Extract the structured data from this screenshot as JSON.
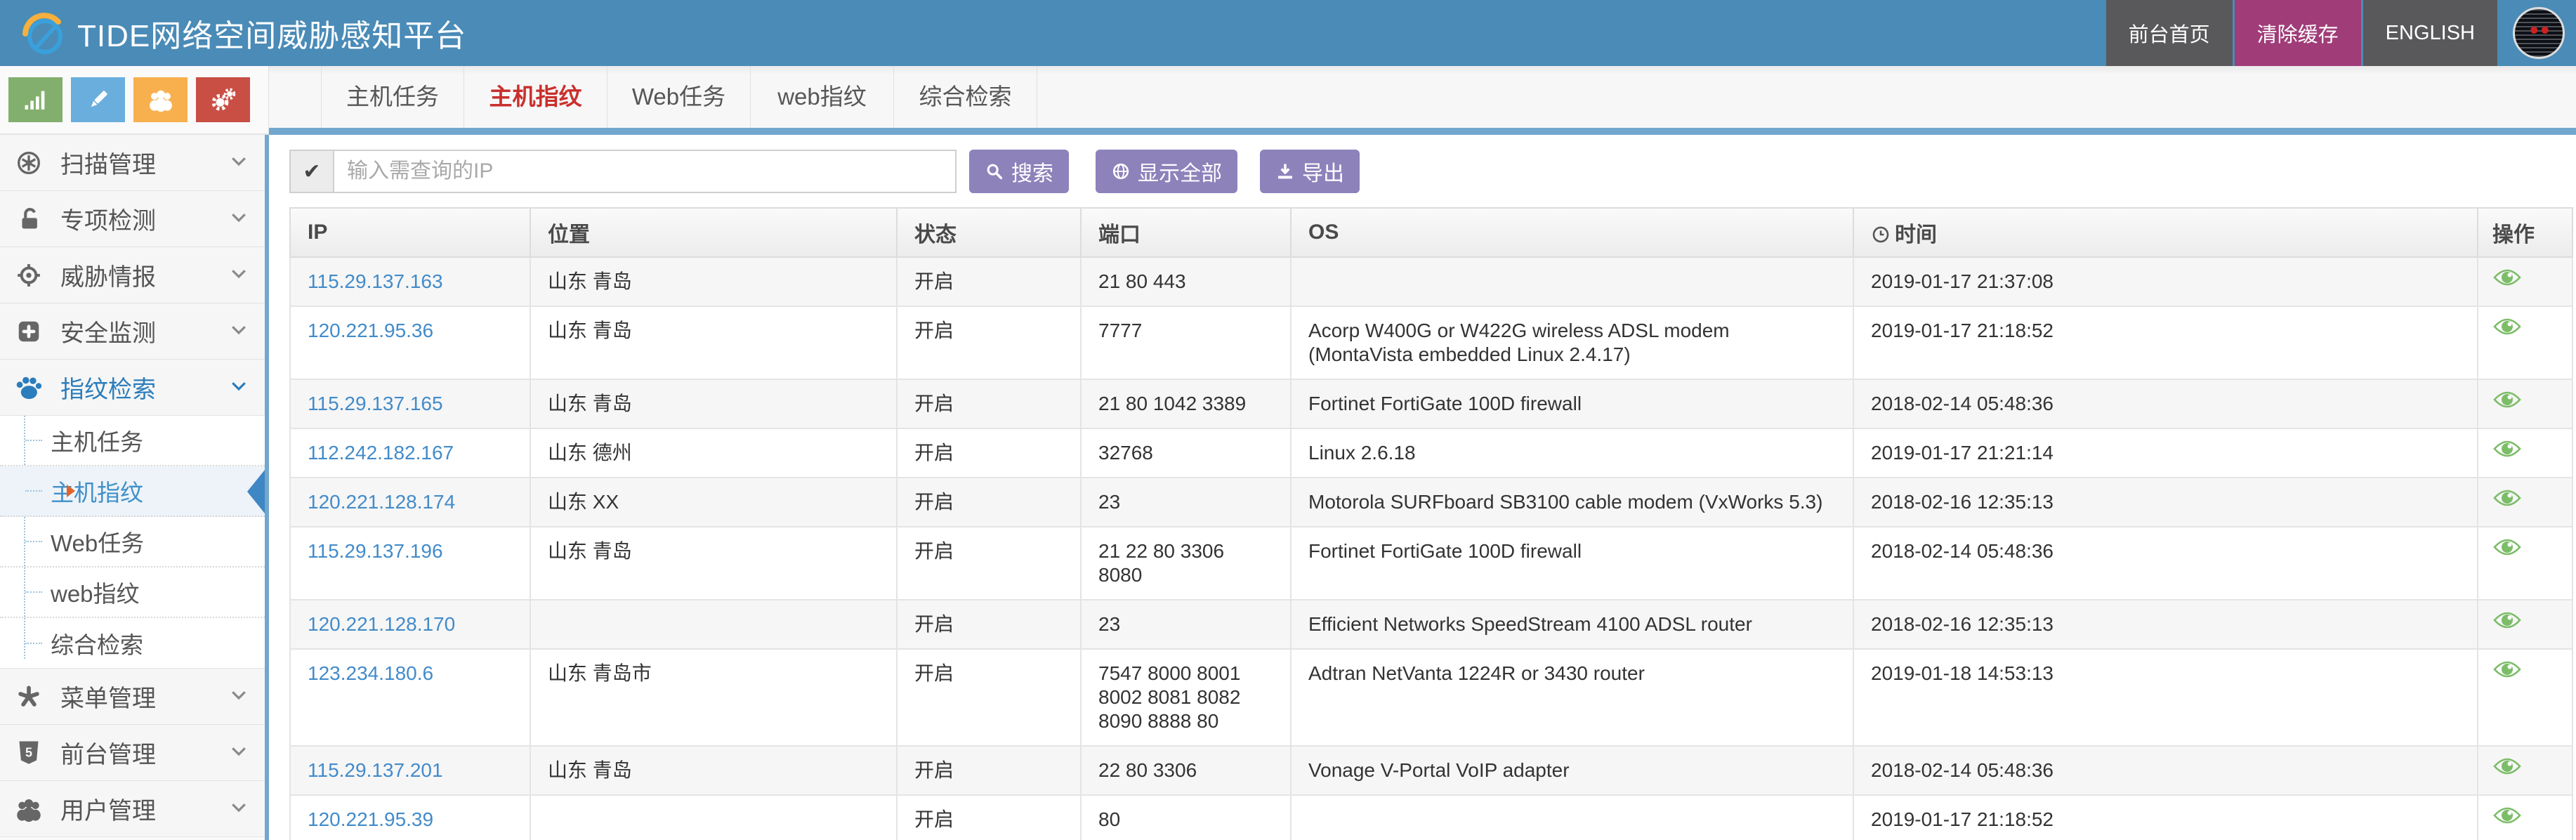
{
  "header": {
    "title": "TIDE网络空间威胁感知平台",
    "nav": [
      {
        "label": "前台首页"
      },
      {
        "label": "清除缓存"
      },
      {
        "label": "ENGLISH"
      }
    ]
  },
  "quick_buttons": [
    {
      "icon": "bar-chart-icon",
      "color": "#82af6e"
    },
    {
      "icon": "pencil-icon",
      "color": "#6aaedd"
    },
    {
      "icon": "users-icon",
      "color": "#f8b04f"
    },
    {
      "icon": "gears-icon",
      "color": "#c94f44"
    }
  ],
  "tabs": [
    {
      "label": "主机任务",
      "active": false
    },
    {
      "label": "主机指纹",
      "active": true
    },
    {
      "label": "Web任务",
      "active": false
    },
    {
      "label": "web指纹",
      "active": false
    },
    {
      "label": "综合检索",
      "active": false
    }
  ],
  "sidebar": {
    "items": [
      {
        "label": "扫描管理",
        "icon": "scan-icon"
      },
      {
        "label": "专项检测",
        "icon": "unlock-icon"
      },
      {
        "label": "威胁情报",
        "icon": "crosshair-icon"
      },
      {
        "label": "安全监测",
        "icon": "plus-square-icon"
      },
      {
        "label": "指纹检索",
        "icon": "paw-icon",
        "active": true,
        "children": [
          {
            "label": "主机任务",
            "active": false
          },
          {
            "label": "主机指纹",
            "active": true
          },
          {
            "label": "Web任务",
            "active": false
          },
          {
            "label": "web指纹",
            "active": false
          },
          {
            "label": "综合检索",
            "active": false
          }
        ]
      },
      {
        "label": "菜单管理",
        "icon": "burst-icon"
      },
      {
        "label": "前台管理",
        "icon": "html5-shield-icon"
      },
      {
        "label": "用户管理",
        "icon": "user-group-icon"
      }
    ]
  },
  "search": {
    "addon_check": "✔",
    "value": "",
    "placeholder": "输入需查询的IP",
    "buttons": {
      "search": "搜索",
      "show_all": "显示全部",
      "export": "导出"
    }
  },
  "table": {
    "columns": [
      "IP",
      "位置",
      "状态",
      "端口",
      "OS",
      "时间",
      "操作"
    ],
    "rows": [
      {
        "ip": "115.29.137.163",
        "location": "山东 青岛",
        "status": "开启",
        "ports": "21 80 443",
        "os": "",
        "time": "2019-01-17 21:37:08"
      },
      {
        "ip": "120.221.95.36",
        "location": "山东 青岛",
        "status": "开启",
        "ports": "7777",
        "os": "Acorp W400G or W422G wireless ADSL modem (MontaVista embedded Linux 2.4.17)",
        "time": "2019-01-17 21:18:52"
      },
      {
        "ip": "115.29.137.165",
        "location": "山东 青岛",
        "status": "开启",
        "ports": "21 80 1042 3389",
        "os": "Fortinet FortiGate 100D firewall",
        "time": "2018-02-14 05:48:36"
      },
      {
        "ip": "112.242.182.167",
        "location": "山东 德州",
        "status": "开启",
        "ports": "32768",
        "os": "Linux 2.6.18",
        "time": "2019-01-17 21:21:14"
      },
      {
        "ip": "120.221.128.174",
        "location": "山东 XX",
        "status": "开启",
        "ports": "23",
        "os": "Motorola SURFboard SB3100 cable modem (VxWorks 5.3)",
        "time": "2018-02-16 12:35:13"
      },
      {
        "ip": "115.29.137.196",
        "location": "山东 青岛",
        "status": "开启",
        "ports": "21 22 80 3306 8080",
        "os": "Fortinet FortiGate 100D firewall",
        "time": "2018-02-14 05:48:36"
      },
      {
        "ip": "120.221.128.170",
        "location": "",
        "status": "开启",
        "ports": "23",
        "os": "Efficient Networks SpeedStream 4100 ADSL router",
        "time": "2018-02-16 12:35:13"
      },
      {
        "ip": "123.234.180.6",
        "location": "山东 青岛市",
        "status": "开启",
        "ports": "7547 8000 8001 8002 8081 8082 8090 8888 80",
        "os": "Adtran NetVanta 1224R or 3430 router",
        "time": "2019-01-18 14:53:13"
      },
      {
        "ip": "115.29.137.201",
        "location": "山东 青岛",
        "status": "开启",
        "ports": "22 80 3306",
        "os": "Vonage V-Portal VoIP adapter",
        "time": "2018-02-14 05:48:36"
      },
      {
        "ip": "120.221.95.39",
        "location": "",
        "status": "开启",
        "ports": "80",
        "os": "",
        "time": "2019-01-17 21:18:52"
      }
    ]
  },
  "colors": {
    "header_blue": "#4a8bb7",
    "tab_underline_blue": "#72a7cd",
    "active_tab_red": "#c9302c",
    "button_purple": "#8e82bb",
    "magenta": "#a03c78",
    "link_blue": "#428bca",
    "eye_green": "#7cbd68",
    "active_side_blue": "#2b7dbc"
  }
}
